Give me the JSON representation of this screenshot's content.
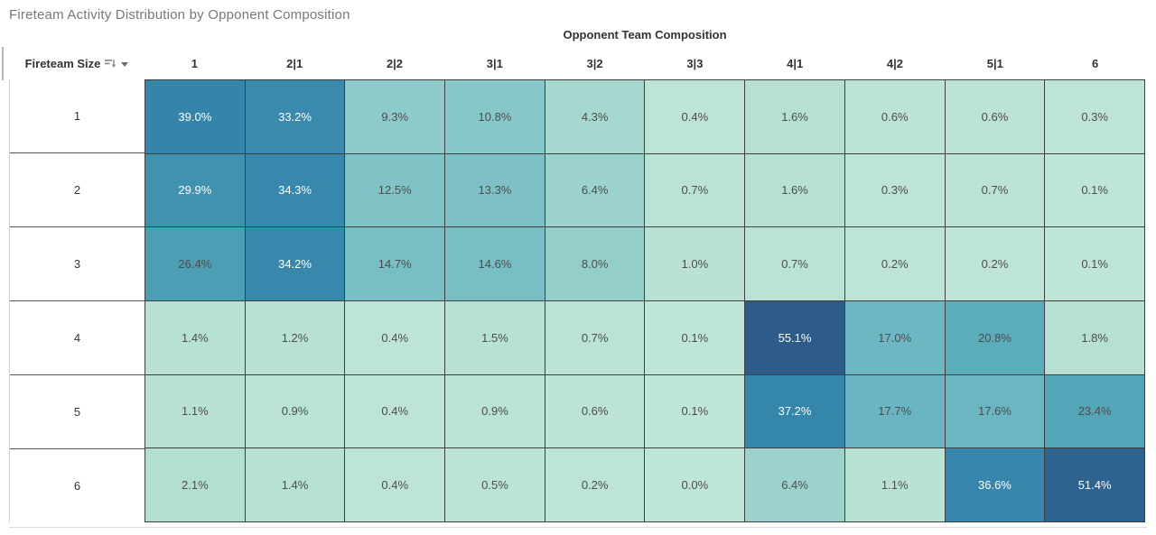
{
  "chart_data": {
    "type": "heatmap",
    "title": "Fireteam Activity Distribution by Opponent Composition",
    "column_axis_title": "Opponent Team Composition",
    "row_axis_title": "Fireteam Size",
    "columns": [
      "1",
      "2|1",
      "2|2",
      "3|1",
      "3|2",
      "3|3",
      "4|1",
      "4|2",
      "5|1",
      "6"
    ],
    "rows": [
      "1",
      "2",
      "3",
      "4",
      "5",
      "6"
    ],
    "values": [
      [
        39.0,
        33.2,
        9.3,
        10.8,
        4.3,
        0.4,
        1.6,
        0.6,
        0.6,
        0.3
      ],
      [
        29.9,
        34.3,
        12.5,
        13.3,
        6.4,
        0.7,
        1.6,
        0.3,
        0.7,
        0.1
      ],
      [
        26.4,
        34.2,
        14.7,
        14.6,
        8.0,
        1.0,
        0.7,
        0.2,
        0.2,
        0.1
      ],
      [
        1.4,
        1.2,
        0.4,
        1.5,
        0.7,
        0.1,
        55.1,
        17.0,
        20.8,
        1.8
      ],
      [
        1.1,
        0.9,
        0.4,
        0.9,
        0.6,
        0.1,
        37.2,
        17.7,
        17.6,
        23.4
      ],
      [
        2.1,
        1.4,
        0.4,
        0.5,
        0.2,
        0.0,
        6.4,
        1.1,
        36.6,
        51.4
      ]
    ],
    "value_suffix": "%",
    "grid": true,
    "legend": "none",
    "color_scale": {
      "stops": [
        [
          0,
          "#bfe5d6"
        ],
        [
          5,
          "#a3d6ce"
        ],
        [
          10,
          "#89c9c9"
        ],
        [
          15,
          "#77bdc5"
        ],
        [
          21,
          "#5aacbc"
        ],
        [
          26,
          "#4c9fb4"
        ],
        [
          30,
          "#4092af"
        ],
        [
          34,
          "#3788ac"
        ],
        [
          40,
          "#3484aa"
        ],
        [
          50,
          "#2f6592"
        ],
        [
          55.1,
          "#2d5c8a"
        ]
      ],
      "white_label_threshold": 28,
      "dark_label_color": "#4d4d4d",
      "white_label_color": "#ffffff"
    }
  }
}
